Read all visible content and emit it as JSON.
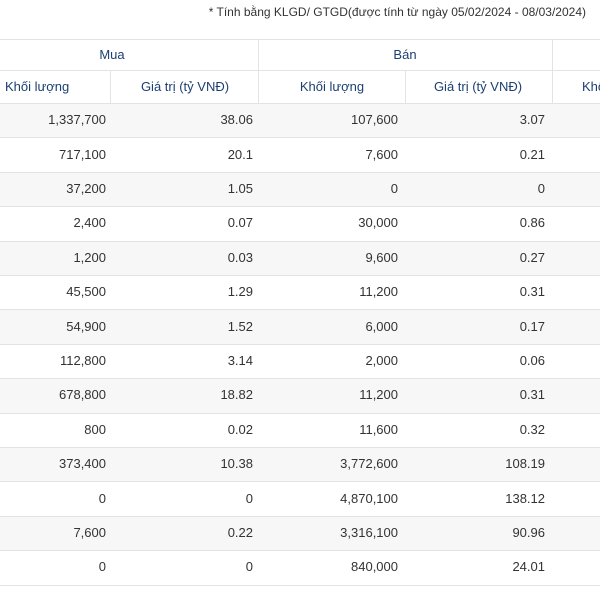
{
  "note": "* Tính bằng KLGD/ GTGD(được tính từ ngày 05/02/2024 - 08/03/2024)",
  "table": {
    "groups": [
      "Mua",
      "Bán"
    ],
    "columns": [
      "Khối lượng",
      "Giá trị (tỷ VNĐ)",
      "Khối lượng",
      "Giá trị (tỷ VNĐ)",
      "Khối lượng"
    ],
    "rows": [
      [
        "1,337,700",
        "38.06",
        "107,600",
        "3.07"
      ],
      [
        "717,100",
        "20.1",
        "7,600",
        "0.21"
      ],
      [
        "37,200",
        "1.05",
        "0",
        "0"
      ],
      [
        "2,400",
        "0.07",
        "30,000",
        "0.86"
      ],
      [
        "1,200",
        "0.03",
        "9,600",
        "0.27"
      ],
      [
        "45,500",
        "1.29",
        "11,200",
        "0.31"
      ],
      [
        "54,900",
        "1.52",
        "6,000",
        "0.17"
      ],
      [
        "112,800",
        "3.14",
        "2,000",
        "0.06"
      ],
      [
        "678,800",
        "18.82",
        "11,200",
        "0.31"
      ],
      [
        "800",
        "0.02",
        "11,600",
        "0.32"
      ],
      [
        "373,400",
        "10.38",
        "3,772,600",
        "108.19"
      ],
      [
        "0",
        "0",
        "4,870,100",
        "138.12"
      ],
      [
        "7,600",
        "0.22",
        "3,316,100",
        "90.96"
      ],
      [
        "0",
        "0",
        "840,000",
        "24.01"
      ]
    ]
  }
}
